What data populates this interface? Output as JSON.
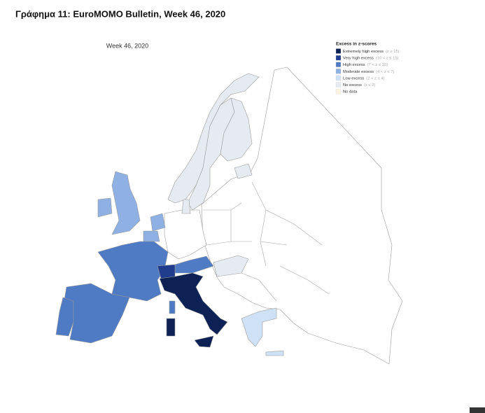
{
  "title": "Γράφημα 11: EuroMOMO Bulletin, Week 46, 2020",
  "map": {
    "subtitle": "Week 46, 2020",
    "legend": {
      "title": "Excess in z-scores",
      "items": [
        {
          "label": "Extremely high excess",
          "range": "(z ≥ 15)",
          "color": "#0d2155"
        },
        {
          "label": "Very high excess",
          "range": "(10 < z ≤ 15)",
          "color": "#1f3d8c"
        },
        {
          "label": "High excess",
          "range": "(7 < z ≤ 10)",
          "color": "#4f7bc4"
        },
        {
          "label": "Moderate excess",
          "range": "(4 < z ≤ 7)",
          "color": "#8eb0e2"
        },
        {
          "label": "Low excess",
          "range": "(2 < z ≤ 4)",
          "color": "#cfe1f5"
        },
        {
          "label": "No excess",
          "range": "(z ≤ 2)",
          "color": "#e6ebf1"
        },
        {
          "label": "No data",
          "color": "#fdf5e1"
        }
      ]
    }
  }
}
